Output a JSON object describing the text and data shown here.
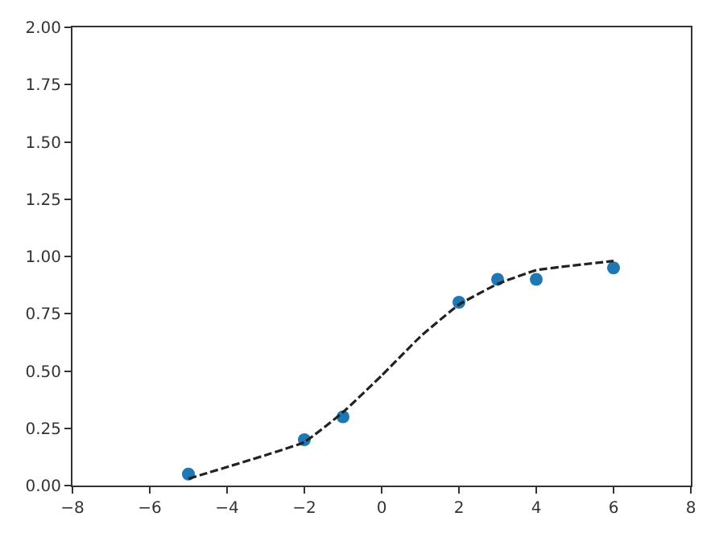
{
  "chart_data": {
    "type": "scatter",
    "xlim": [
      -8,
      8
    ],
    "ylim": [
      0,
      2
    ],
    "xticks": [
      {
        "value": -8,
        "label": "−8"
      },
      {
        "value": -6,
        "label": "−6"
      },
      {
        "value": -4,
        "label": "−4"
      },
      {
        "value": -2,
        "label": "−2"
      },
      0,
      2,
      4,
      6,
      8
    ],
    "yticks": [
      {
        "value": 0,
        "label": "0.00"
      },
      {
        "value": 0.25,
        "label": "0.25"
      },
      {
        "value": 0.5,
        "label": "0.50"
      },
      {
        "value": 0.75,
        "label": "0.75"
      },
      {
        "value": 1,
        "label": "1.00"
      },
      {
        "value": 1.25,
        "label": "1.25"
      },
      {
        "value": 1.5,
        "label": "1.50"
      },
      {
        "value": 1.75,
        "label": "1.75"
      },
      {
        "value": 2,
        "label": "2.00"
      }
    ],
    "grid": false,
    "series": [
      {
        "color": "#1f77b4",
        "marker": "circle",
        "x": [
          -5,
          -2,
          -1,
          2,
          3,
          4,
          6
        ],
        "values": [
          0.05,
          0.2,
          0.3,
          0.8,
          0.9,
          0.9,
          0.95
        ]
      },
      {
        "type": "line",
        "color": "#222222",
        "line_style": "dashed",
        "marker": "none",
        "x": [
          -5,
          -2,
          -1,
          0,
          1,
          2,
          3,
          4,
          6
        ],
        "values": [
          0.03,
          0.19,
          0.32,
          0.48,
          0.65,
          0.79,
          0.88,
          0.94,
          0.98
        ]
      }
    ]
  }
}
